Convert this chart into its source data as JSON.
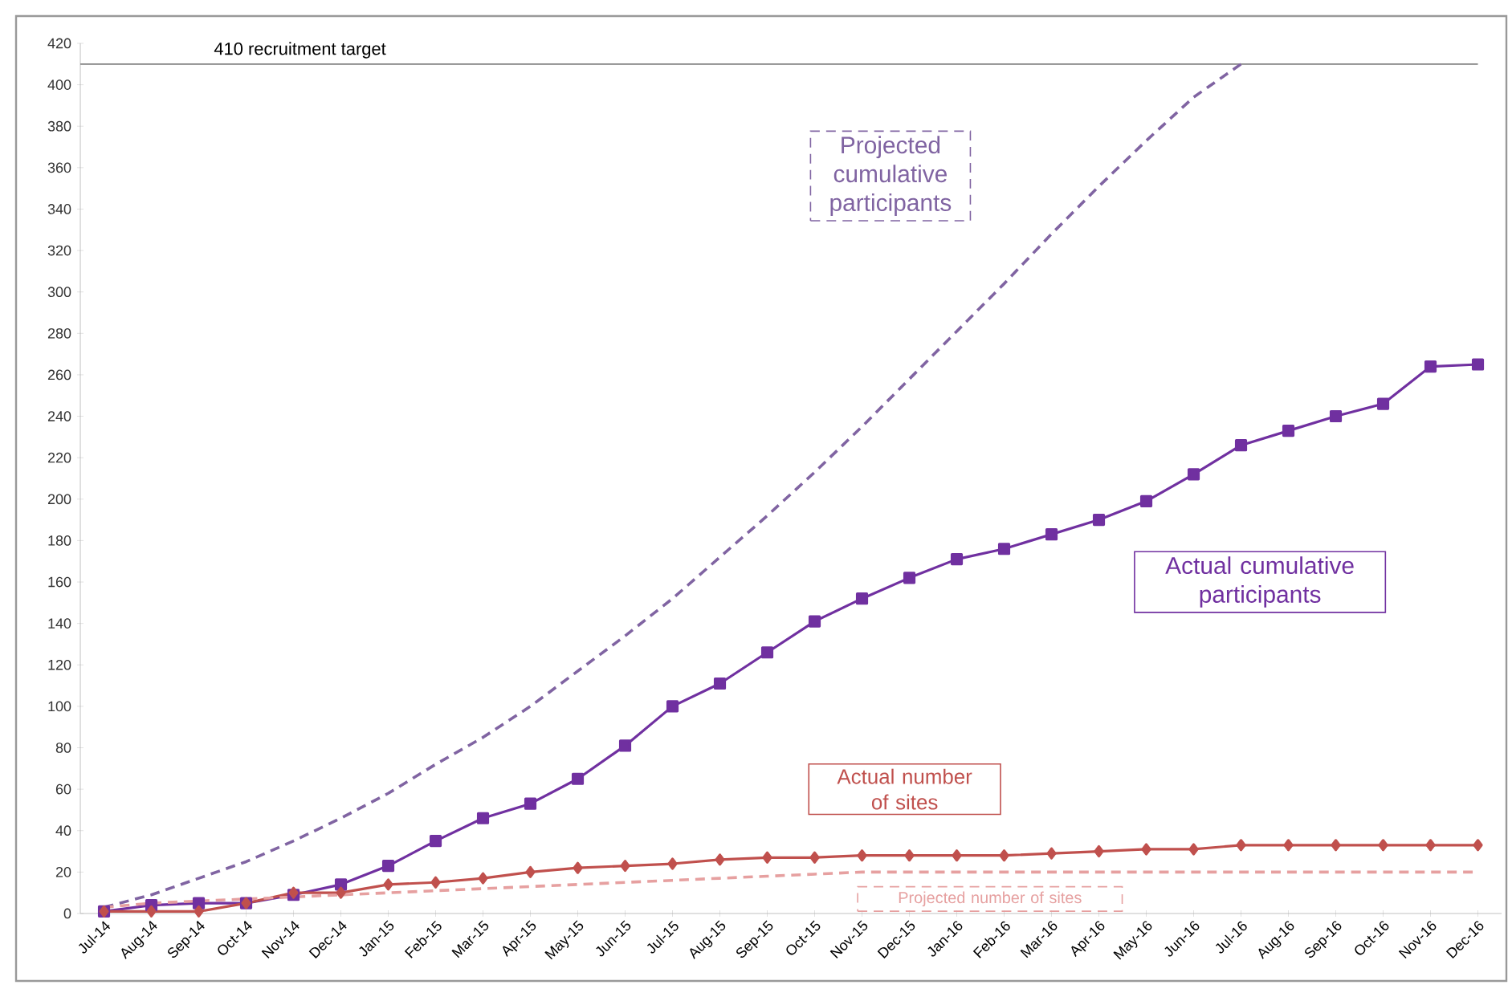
{
  "chart_data": {
    "type": "line",
    "categories": [
      "Jul-14",
      "Aug-14",
      "Sep-14",
      "Oct-14",
      "Nov-14",
      "Dec-14",
      "Jan-15",
      "Feb-15",
      "Mar-15",
      "Apr-15",
      "May-15",
      "Jun-15",
      "Jul-15",
      "Aug-15",
      "Sep-15",
      "Oct-15",
      "Nov-15",
      "Dec-15",
      "Jan-16",
      "Feb-16",
      "Mar-16",
      "Apr-16",
      "May-16",
      "Jun-16",
      "Jul-16",
      "Aug-16",
      "Sep-16",
      "Oct-16",
      "Nov-16",
      "Dec-16"
    ],
    "series": [
      {
        "name": "Projected cumulative participants",
        "color": "#8064a2",
        "line_style": "dashed",
        "marker": "none",
        "values": [
          3,
          9,
          17,
          25,
          35,
          46,
          58,
          72,
          85,
          100,
          117,
          134,
          152,
          172,
          192,
          213,
          235,
          258,
          281,
          304,
          328,
          351,
          373,
          394,
          410,
          null,
          null,
          null,
          null,
          null
        ]
      },
      {
        "name": "Actual cumulative participants",
        "color": "#7030a0",
        "line_style": "solid",
        "marker": "square",
        "values": [
          1,
          4,
          5,
          5,
          9,
          14,
          23,
          35,
          46,
          53,
          65,
          81,
          100,
          111,
          126,
          141,
          152,
          162,
          171,
          176,
          183,
          190,
          199,
          212,
          226,
          233,
          240,
          246,
          264,
          265
        ]
      },
      {
        "name": "Actual number of sites",
        "color": "#c0504d",
        "line_style": "solid",
        "marker": "diamond",
        "values": [
          1,
          1,
          1,
          5,
          10,
          10,
          14,
          15,
          17,
          20,
          22,
          23,
          24,
          26,
          27,
          27,
          28,
          28,
          28,
          28,
          29,
          30,
          31,
          31,
          33,
          33,
          33,
          33,
          33,
          33
        ]
      },
      {
        "name": "Projected number of sites",
        "color": "#e6a0a0",
        "line_style": "dashed",
        "marker": "none",
        "values": [
          3,
          5,
          6,
          7,
          8,
          9,
          10,
          11,
          12,
          13,
          14,
          15,
          16,
          17,
          18,
          19,
          20,
          20,
          20,
          20,
          20,
          20,
          20,
          20,
          20,
          20,
          20,
          20,
          20,
          20
        ]
      }
    ],
    "ylim": [
      0,
      420
    ],
    "yticks": [
      0,
      20,
      40,
      60,
      80,
      100,
      120,
      140,
      160,
      180,
      200,
      220,
      240,
      260,
      280,
      300,
      320,
      340,
      360,
      380,
      400,
      420
    ],
    "ref_lines": [
      {
        "axis": "y",
        "value": 410,
        "label": "410 recruitment target",
        "color": "#808080"
      }
    ],
    "grid": false
  }
}
